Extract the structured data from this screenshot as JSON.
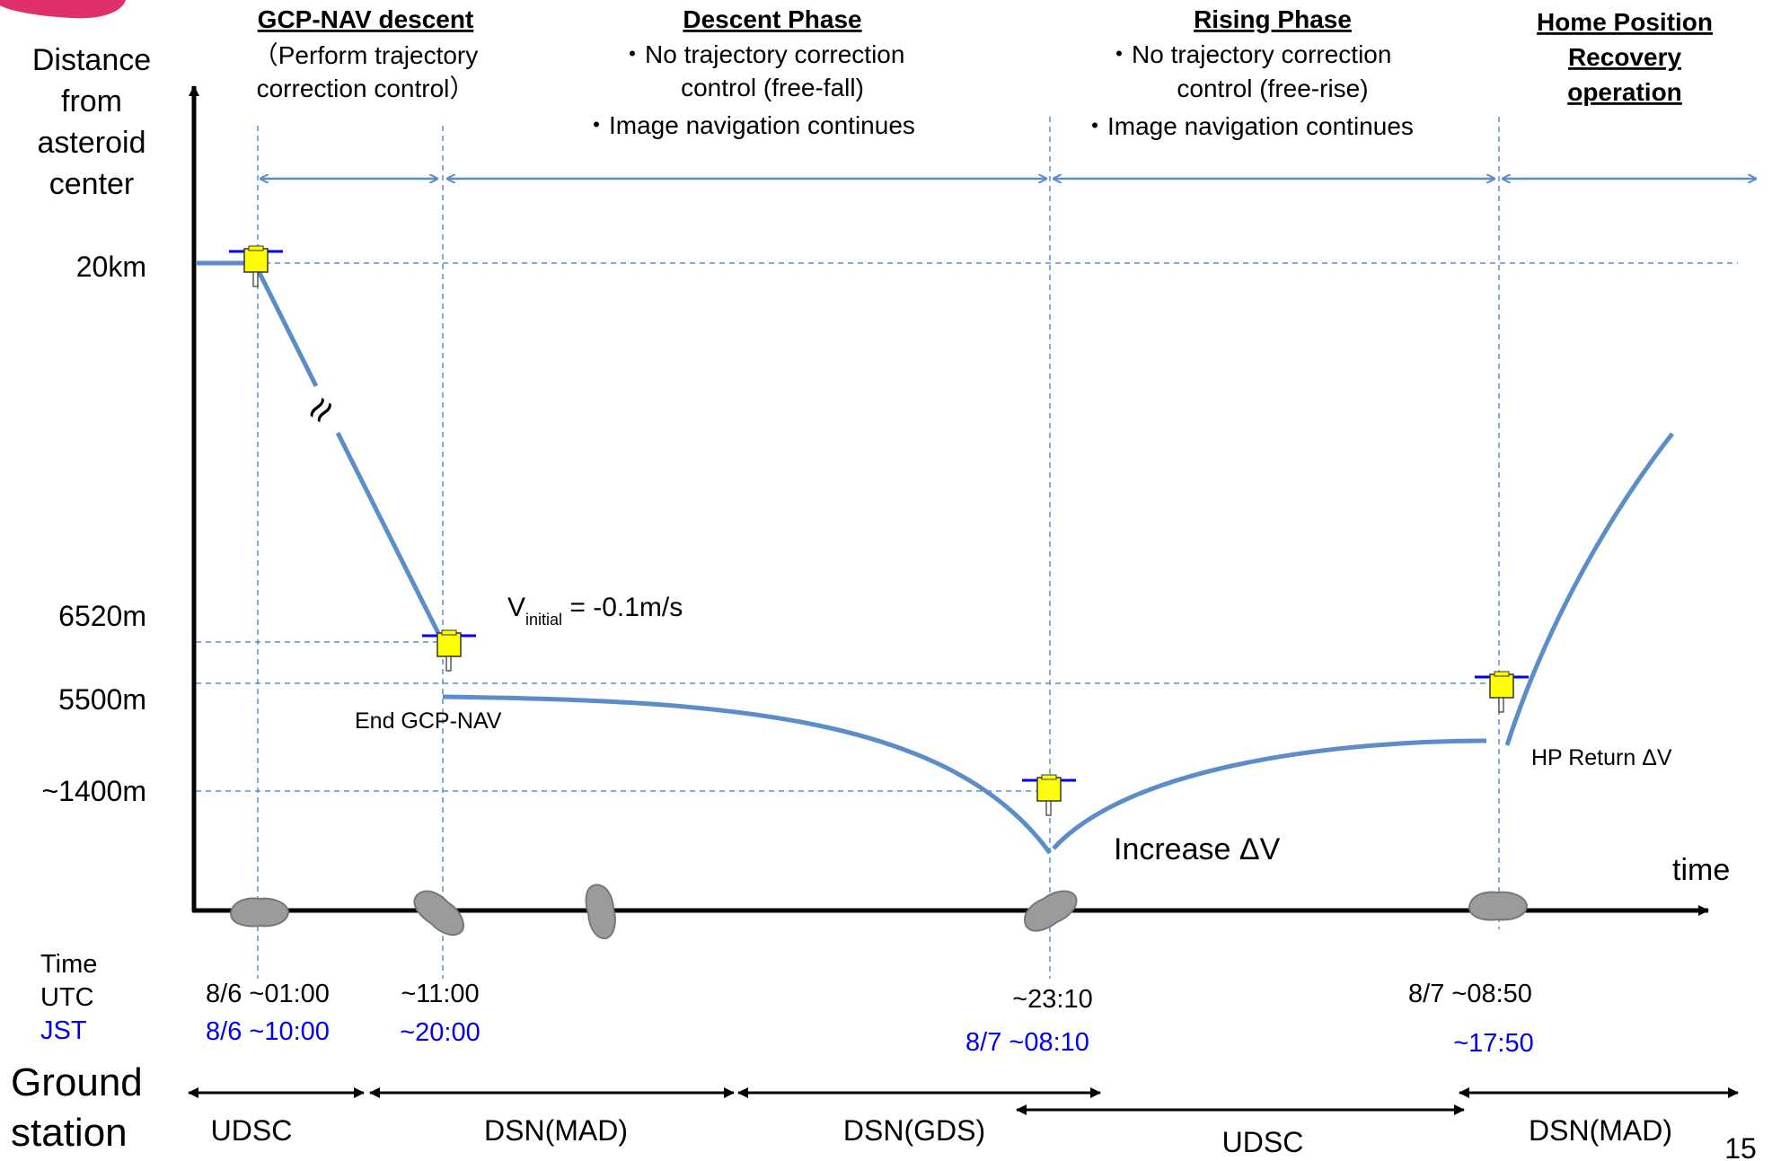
{
  "y_axis": {
    "label_lines": [
      "Distance",
      "from",
      "asteroid",
      "center"
    ],
    "ticks": [
      "20km",
      "6520m",
      "5500m",
      "~1400m"
    ]
  },
  "x_axis": {
    "label": "time"
  },
  "phases": [
    {
      "title": "GCP-NAV descent",
      "lines": [
        "（Perform trajectory",
        "correction control）"
      ]
    },
    {
      "title": "Descent Phase",
      "lines": [
        "・No trajectory correction",
        "control (free-fall)",
        "・Image navigation continues"
      ]
    },
    {
      "title": "Rising Phase",
      "lines": [
        "・No trajectory correction",
        "control (free-rise)",
        "・Image navigation continues"
      ]
    },
    {
      "title_lines": [
        "Home Position",
        "Recovery",
        "operation"
      ]
    }
  ],
  "annotations": {
    "v_initial_main": "V",
    "v_initial_sub": "initial",
    "v_initial_rest": " = -0.1m/s",
    "end_gcp_nav": "End GCP-NAV",
    "increase_dv": "Increase ΔV",
    "hp_return_dv": "HP Return ΔV",
    "break_mark": "≈"
  },
  "time_table": {
    "header": "Time",
    "utc_label": "UTC",
    "jst_label": "JST",
    "utc": [
      "8/6 ~01:00",
      "~11:00",
      "~23:10",
      "8/7 ~08:50"
    ],
    "jst": [
      "8/6 ~10:00",
      "~20:00",
      "8/7 ~08:10",
      "~17:50"
    ]
  },
  "ground_station": {
    "label_lines": [
      "Ground",
      "station"
    ],
    "segments": [
      "UDSC",
      "DSN(MAD)",
      "DSN(GDS)",
      "UDSC",
      "DSN(MAD)"
    ]
  },
  "page_number": "15",
  "colors": {
    "trajectory": "#5b8dc8",
    "guide_lines": "#5b8dc8",
    "jst_text": "#0000ee",
    "spacecraft_body": "#ffff00",
    "solar_panel": "#0000ee",
    "asteroid": "#999999",
    "logo": "#e0306a"
  }
}
